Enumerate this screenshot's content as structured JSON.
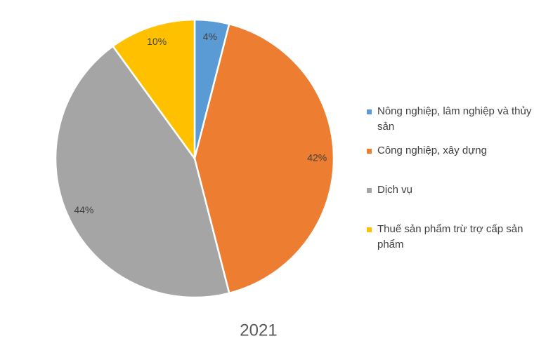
{
  "chart_data": {
    "type": "pie",
    "title": "2021",
    "categories": [
      "Nông nghiệp, lâm nghiệp và thủy sản",
      "Công nghiệp, xây dựng",
      "Dịch vụ",
      "Thuế sản phẩm trừ trợ cấp sản phẩm"
    ],
    "values": [
      4,
      42,
      44,
      10
    ],
    "value_labels": [
      "4%",
      "42%",
      "44%",
      "10%"
    ],
    "colors": [
      "#5b9bd5",
      "#ed7d31",
      "#a5a5a5",
      "#ffc000"
    ],
    "legend": "right"
  }
}
